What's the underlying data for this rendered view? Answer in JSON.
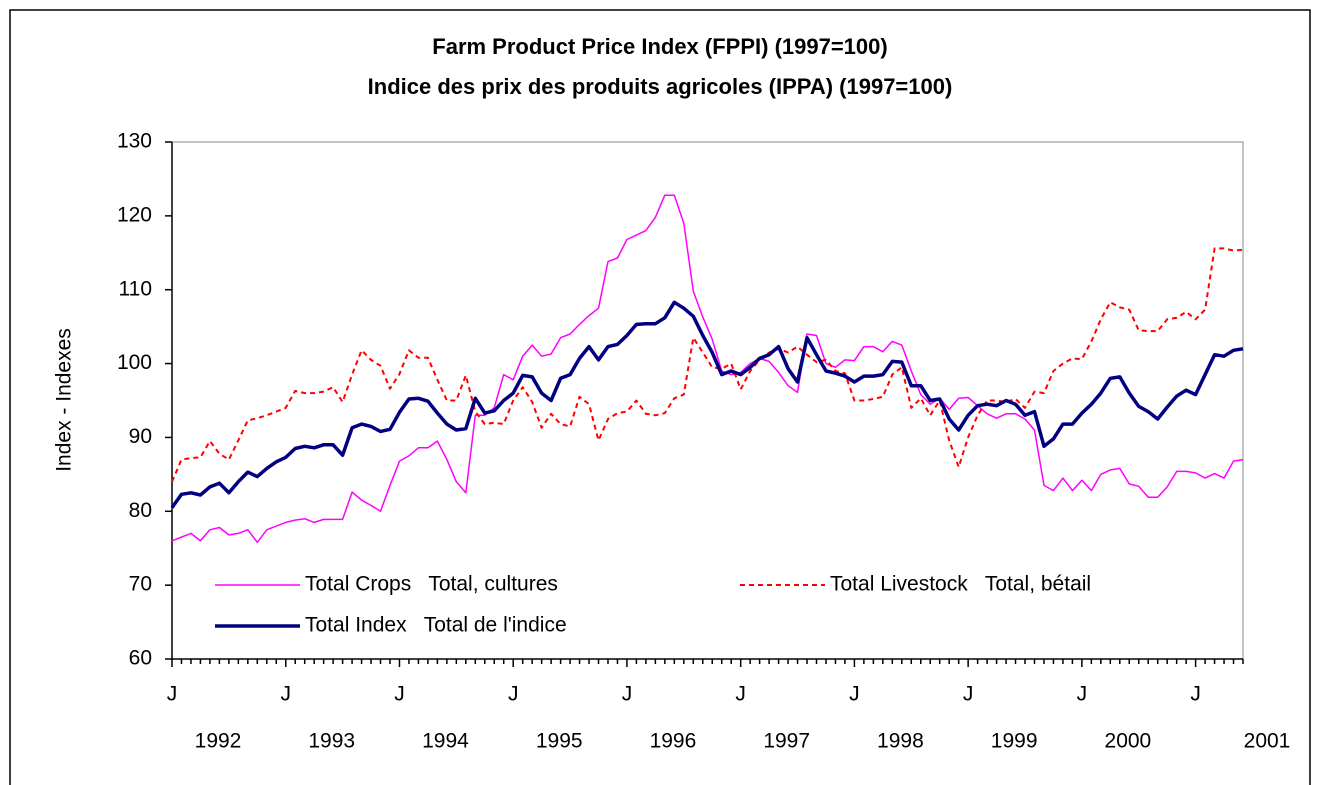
{
  "chart_data": {
    "type": "line",
    "title": "Farm Product Price Index (FPPI) (1997=100)",
    "subtitle": "Indice des prix des produits agricoles (IPPA) (1997=100)",
    "y_label": "Index - Indexes",
    "categories": [
      "J",
      null,
      null,
      null,
      null,
      null,
      null,
      null,
      null,
      null,
      null,
      null,
      "J",
      null,
      null,
      null,
      null,
      null,
      null,
      null,
      null,
      null,
      null,
      null,
      "J",
      null,
      null,
      null,
      null,
      null,
      null,
      null,
      null,
      null,
      null,
      null,
      "J",
      null,
      null,
      null,
      null,
      null,
      null,
      null,
      null,
      null,
      null,
      null,
      "J",
      null,
      null,
      null,
      null,
      null,
      null,
      null,
      null,
      null,
      null,
      null,
      "J",
      null,
      null,
      null,
      null,
      null,
      null,
      null,
      null,
      null,
      null,
      null,
      "J",
      null,
      null,
      null,
      null,
      null,
      null,
      null,
      null,
      null,
      null,
      null,
      "J",
      null,
      null,
      null,
      null,
      null,
      null,
      null,
      null,
      null,
      null,
      null,
      "J",
      null,
      null,
      null,
      null,
      null,
      null,
      null,
      null,
      null,
      null,
      null,
      "J",
      null,
      null,
      null,
      null,
      null
    ],
    "year_labels": [
      "1992",
      "1993",
      "1994",
      "1995",
      "1996",
      "1997",
      "1998",
      "1999",
      "2000",
      "2001"
    ],
    "ylim": [
      60,
      130
    ],
    "yticks": [
      60,
      70,
      80,
      90,
      100,
      110,
      120,
      130
    ],
    "grid": false,
    "series": [
      {
        "name": "Total Crops   Total, cultures",
        "color": "#ff00ff",
        "style": "solid",
        "values": [
          76,
          76.5,
          77,
          76,
          77.5,
          77.8,
          76.8,
          77,
          77.5,
          75.8,
          77.5,
          78,
          78.5,
          78.8,
          79,
          78.5,
          78.9,
          78.9,
          78.9,
          82.6,
          81.5,
          80.8,
          80,
          83.5,
          86.8,
          87.5,
          88.6,
          88.6,
          89.5,
          87,
          84,
          82.5,
          93,
          93,
          94,
          98.5,
          97.8,
          101,
          102.5,
          101,
          101.3,
          103.5,
          104,
          105.3,
          106.5,
          107.5,
          113.8,
          114.3,
          116.8,
          117.4,
          118,
          119.8,
          122.8,
          122.8,
          119,
          109.8,
          106.3,
          103.3,
          99,
          98.5,
          98.8,
          100,
          100.7,
          100.3,
          98.8,
          97,
          96.1,
          104,
          103.8,
          100,
          99.5,
          100.5,
          100.4,
          102.3,
          102.3,
          101.6,
          103,
          102.5,
          99,
          95.8,
          94.5,
          95.3,
          93.8,
          95.3,
          95.4,
          94.3,
          93.2,
          92.6,
          93.2,
          93.2,
          92.5,
          91,
          83.5,
          82.8,
          84.5,
          82.8,
          84.2,
          82.8,
          85,
          85.6,
          85.8,
          83.7,
          83.4,
          81.9,
          81.9,
          83.3,
          85.4,
          85.4,
          85.2,
          84.5,
          85.1,
          84.5,
          86.8,
          87
        ]
      },
      {
        "name": "Total Livestock   Total, bétail",
        "color": "#ff0000",
        "style": "dashed",
        "values": [
          84,
          87,
          87.2,
          87.3,
          89.5,
          87.8,
          87,
          89.6,
          92.3,
          92.6,
          93,
          93.5,
          94,
          96.3,
          96,
          96,
          96.2,
          96.8,
          94.8,
          98.5,
          101.8,
          100.5,
          99.7,
          96.6,
          98.6,
          101.8,
          100.8,
          100.8,
          97.8,
          95,
          95,
          98.4,
          93.5,
          91.8,
          92,
          91.8,
          95,
          96.8,
          94.8,
          91.3,
          93.2,
          91.8,
          91.5,
          95.5,
          94.5,
          89.6,
          92.5,
          93.3,
          93.5,
          95,
          93.2,
          93,
          93.3,
          95.3,
          95.8,
          103.5,
          101.5,
          99.5,
          99.3,
          100,
          96.5,
          99,
          100.5,
          101.5,
          102,
          101.5,
          102.3,
          101.2,
          100.2,
          100.5,
          99,
          98.7,
          95,
          95,
          95.2,
          95.5,
          98.5,
          99.5,
          94,
          95.3,
          93,
          95,
          89.6,
          86,
          90,
          93,
          95,
          95,
          94.8,
          95.2,
          94,
          96.2,
          96,
          99,
          100,
          100.7,
          100.6,
          103,
          106,
          108.3,
          107.6,
          107.3,
          104.5,
          104.4,
          104.4,
          106,
          106.2,
          107,
          106,
          107.3,
          115.6,
          115.6,
          115.3,
          115.4
        ]
      },
      {
        "name": "Total Index   Total de l'indice",
        "color": "#000080",
        "style": "thick",
        "values": [
          80.5,
          82.3,
          82.5,
          82.2,
          83.3,
          83.8,
          82.5,
          84,
          85.3,
          84.7,
          85.8,
          86.7,
          87.3,
          88.5,
          88.8,
          88.6,
          89,
          89,
          87.6,
          91.3,
          91.8,
          91.5,
          90.8,
          91.1,
          93.4,
          95.2,
          95.3,
          94.9,
          93.3,
          91.8,
          91,
          91.2,
          95.3,
          93.3,
          93.6,
          95,
          96,
          98.4,
          98.2,
          96,
          95,
          98,
          98.5,
          100.7,
          102.3,
          100.5,
          102.3,
          102.6,
          103.8,
          105.3,
          105.4,
          105.4,
          106.2,
          108.3,
          107.5,
          106.4,
          103.8,
          101.5,
          98.5,
          99,
          98.5,
          99.5,
          100.7,
          101.2,
          102.3,
          99.3,
          97.5,
          103.5,
          101.2,
          99,
          98.7,
          98.3,
          97.5,
          98.3,
          98.3,
          98.5,
          100.3,
          100.2,
          97,
          97,
          95,
          95.2,
          92.5,
          91,
          93,
          94.3,
          94.5,
          94.3,
          95,
          94.5,
          93,
          93.5,
          88.8,
          89.8,
          91.8,
          91.8,
          93.3,
          94.5,
          96,
          98,
          98.2,
          96,
          94.2,
          93.5,
          92.5,
          94.1,
          95.6,
          96.4,
          95.8,
          98.5,
          101.2,
          101,
          101.8,
          102
        ]
      }
    ]
  }
}
